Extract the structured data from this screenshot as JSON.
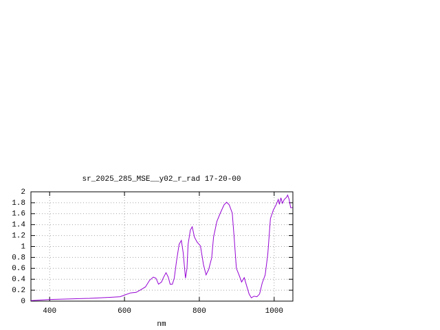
{
  "chart_data": {
    "type": "line",
    "title": "sr_2025_285_MSE__y02_r_rad 17-20-00",
    "x_label": "nm",
    "x": [
      350,
      400,
      450,
      505,
      561,
      588,
      600,
      616,
      631,
      644,
      656,
      667,
      677,
      684,
      691,
      699,
      704,
      711,
      717,
      722,
      728,
      733,
      739,
      746,
      752,
      757,
      763,
      767,
      770,
      776,
      781,
      787,
      794,
      803,
      811,
      818,
      825,
      833,
      838,
      847,
      856,
      866,
      873,
      880,
      888,
      893,
      899,
      906,
      913,
      920,
      926,
      933,
      939,
      946,
      954,
      961,
      968,
      976,
      983,
      990,
      998,
      1005,
      1011,
      1014,
      1018,
      1022,
      1027,
      1033,
      1036,
      1040,
      1044,
      1049
    ],
    "values": [
      0.01,
      0.03,
      0.04,
      0.05,
      0.07,
      0.08,
      0.11,
      0.15,
      0.16,
      0.21,
      0.26,
      0.38,
      0.44,
      0.42,
      0.31,
      0.35,
      0.43,
      0.52,
      0.44,
      0.31,
      0.31,
      0.42,
      0.73,
      1.04,
      1.11,
      0.88,
      0.42,
      0.6,
      1.04,
      1.3,
      1.36,
      1.17,
      1.08,
      1.01,
      0.67,
      0.48,
      0.58,
      0.79,
      1.17,
      1.46,
      1.61,
      1.76,
      1.81,
      1.76,
      1.61,
      1.17,
      0.6,
      0.48,
      0.35,
      0.43,
      0.29,
      0.13,
      0.06,
      0.09,
      0.08,
      0.13,
      0.33,
      0.48,
      0.86,
      1.51,
      1.67,
      1.76,
      1.86,
      1.77,
      1.89,
      1.79,
      1.86,
      1.9,
      1.94,
      1.86,
      1.71,
      1.71
    ],
    "color": "#9400d3",
    "xlim": [
      350,
      1050
    ],
    "xticks": [
      400,
      600,
      800,
      1000
    ],
    "ylim": [
      0,
      2
    ],
    "yticks": [
      0,
      0.2,
      0.4,
      0.6,
      0.8,
      1,
      1.2,
      1.4,
      1.6,
      1.8,
      2
    ],
    "grid": true
  }
}
